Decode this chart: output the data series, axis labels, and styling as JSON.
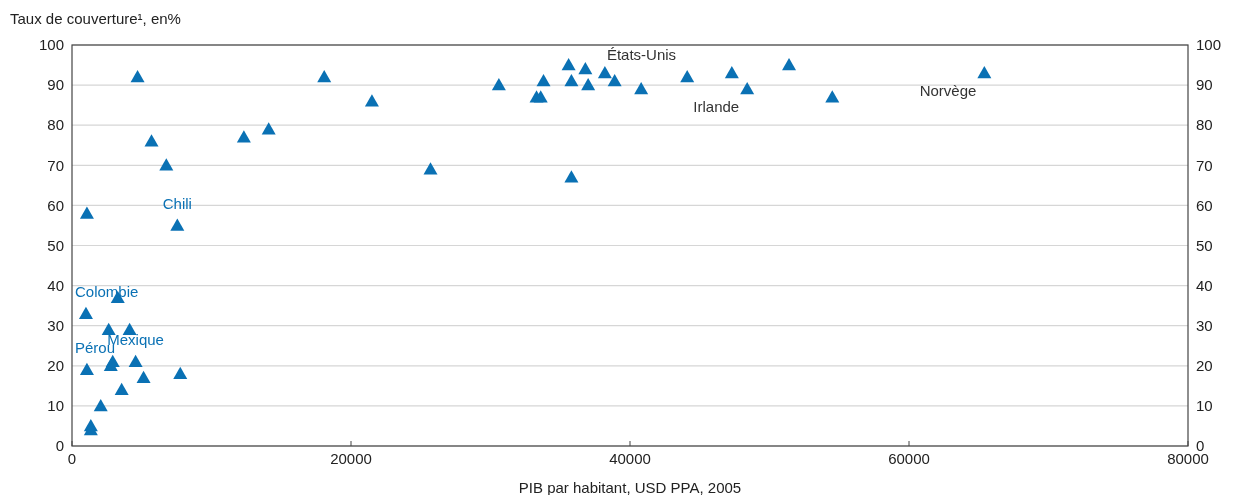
{
  "chart_data": {
    "type": "scatter",
    "ylabel": "Taux de couverture¹, en%",
    "xlabel": "PIB par habitant, USD PPA, 2005",
    "xlim": [
      0,
      80000
    ],
    "xticks": [
      0,
      20000,
      40000,
      60000,
      80000
    ],
    "ylim": [
      0,
      100
    ],
    "yticks": [
      0,
      10,
      20,
      30,
      40,
      50,
      60,
      70,
      80,
      90,
      100
    ],
    "y2lim": [
      0,
      100
    ],
    "y2ticks": [
      0,
      10,
      20,
      30,
      40,
      50,
      60,
      70,
      80,
      90,
      100
    ],
    "grid": "y",
    "marker": "triangle",
    "series": [
      {
        "color": "#0a71b4",
        "x": [
          1070,
          4700,
          5700,
          6760,
          7550,
          1000,
          3280,
          2630,
          4130,
          1070,
          2780,
          2920,
          4560,
          5130,
          7760,
          3560,
          2060,
          1350,
          1350,
          12320,
          14100,
          18080,
          21500,
          25700,
          30600,
          33300,
          33600,
          33800,
          35600,
          35800,
          35800,
          36800,
          37000,
          38200,
          38900,
          40800,
          44100,
          47300,
          48400,
          51400,
          54500,
          65400
        ],
        "values": [
          58,
          92,
          76,
          70,
          55,
          33,
          37,
          29,
          29,
          19,
          20,
          21,
          21,
          17,
          18,
          14,
          10,
          5,
          4,
          77,
          79,
          92,
          86,
          69,
          90,
          87,
          87,
          91,
          95,
          91,
          67,
          94,
          90,
          93,
          91,
          89,
          92,
          93,
          89,
          95,
          87,
          93
        ]
      }
    ],
    "annotations": [
      {
        "text": "Chili",
        "x": 7550,
        "y": 55
      },
      {
        "text": "Colombie",
        "x": 1000,
        "y": 33
      },
      {
        "text": "Pérou",
        "x": 1070,
        "y": 19
      },
      {
        "text": "Mexique",
        "x": 4560,
        "y": 21
      },
      {
        "text": "États-Unis",
        "x": 38200,
        "y": 93
      },
      {
        "text": "Irlande",
        "x": 48400,
        "y": 89
      },
      {
        "text": "Norvège",
        "x": 65400,
        "y": 93
      }
    ]
  }
}
